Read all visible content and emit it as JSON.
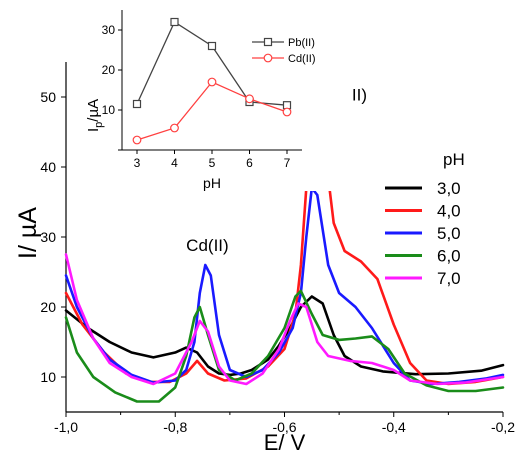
{
  "chart_data": [
    {
      "type": "line",
      "title": "",
      "xlabel": "E/ V",
      "ylabel": "I/ µA",
      "xlim": [
        -1.0,
        -0.2
      ],
      "ylim": [
        5,
        55
      ],
      "x_ticks": [
        -1.0,
        -0.8,
        -0.6,
        -0.4,
        -0.2
      ],
      "x_tick_labels": [
        "-1,0",
        "-0,8",
        "-0,6",
        "-0,4",
        "-0,2"
      ],
      "y_ticks": [
        10,
        20,
        30,
        40,
        50
      ],
      "y_tick_labels": [
        "10",
        "20",
        "30",
        "40",
        "50"
      ],
      "grid": false,
      "legend_title": "pH",
      "legend_position": "right",
      "annotations": [
        {
          "text": "Cd(II)",
          "x": -0.78,
          "y": 28
        },
        {
          "text": "Pb(II)",
          "x": -0.525,
          "y": 49.5
        }
      ],
      "series": [
        {
          "name": "3,0",
          "color": "#000000",
          "points": [
            [
              -1.0,
              19.5
            ],
            [
              -0.96,
              17
            ],
            [
              -0.92,
              15
            ],
            [
              -0.88,
              13.5
            ],
            [
              -0.84,
              12.8
            ],
            [
              -0.8,
              13.5
            ],
            [
              -0.78,
              14.2
            ],
            [
              -0.76,
              13.5
            ],
            [
              -0.74,
              11.5
            ],
            [
              -0.72,
              10.5
            ],
            [
              -0.7,
              10.3
            ],
            [
              -0.68,
              10.5
            ],
            [
              -0.66,
              11
            ],
            [
              -0.63,
              12.5
            ],
            [
              -0.61,
              14.5
            ],
            [
              -0.59,
              17
            ],
            [
              -0.57,
              20
            ],
            [
              -0.55,
              21.5
            ],
            [
              -0.53,
              20.5
            ],
            [
              -0.51,
              16
            ],
            [
              -0.49,
              13
            ],
            [
              -0.46,
              11.5
            ],
            [
              -0.42,
              10.8
            ],
            [
              -0.36,
              10.4
            ],
            [
              -0.3,
              10.5
            ],
            [
              -0.24,
              10.9
            ],
            [
              -0.2,
              11.7
            ]
          ]
        },
        {
          "name": "4,0",
          "color": "#ff1a1a",
          "points": [
            [
              -1.0,
              22
            ],
            [
              -0.97,
              17.5
            ],
            [
              -0.93,
              13.5
            ],
            [
              -0.89,
              10.5
            ],
            [
              -0.85,
              9.3
            ],
            [
              -0.81,
              9.3
            ],
            [
              -0.78,
              10.5
            ],
            [
              -0.76,
              12.3
            ],
            [
              -0.74,
              10.5
            ],
            [
              -0.71,
              9.5
            ],
            [
              -0.67,
              9.8
            ],
            [
              -0.63,
              11.5
            ],
            [
              -0.6,
              14
            ],
            [
              -0.58,
              19
            ],
            [
              -0.57,
              26
            ],
            [
              -0.56,
              37
            ],
            [
              -0.55,
              47
            ],
            [
              -0.545,
              49
            ],
            [
              -0.53,
              45
            ],
            [
              -0.51,
              32
            ],
            [
              -0.49,
              28
            ],
            [
              -0.46,
              26.5
            ],
            [
              -0.43,
              24
            ],
            [
              -0.4,
              17.5
            ],
            [
              -0.37,
              12
            ],
            [
              -0.34,
              9.5
            ],
            [
              -0.3,
              9
            ],
            [
              -0.25,
              9.3
            ],
            [
              -0.2,
              10
            ]
          ]
        },
        {
          "name": "5,0",
          "color": "#1a1aff",
          "points": [
            [
              -1.0,
              24.5
            ],
            [
              -0.98,
              20
            ],
            [
              -0.95,
              15.5
            ],
            [
              -0.92,
              12.5
            ],
            [
              -0.88,
              10.3
            ],
            [
              -0.84,
              9.2
            ],
            [
              -0.8,
              9.5
            ],
            [
              -0.78,
              11
            ],
            [
              -0.765,
              15
            ],
            [
              -0.755,
              22
            ],
            [
              -0.745,
              26
            ],
            [
              -0.735,
              24.5
            ],
            [
              -0.72,
              16
            ],
            [
              -0.7,
              11
            ],
            [
              -0.67,
              10
            ],
            [
              -0.64,
              11
            ],
            [
              -0.61,
              13.5
            ],
            [
              -0.585,
              17
            ],
            [
              -0.57,
              22
            ],
            [
              -0.56,
              30
            ],
            [
              -0.55,
              37
            ],
            [
              -0.54,
              36
            ],
            [
              -0.52,
              26
            ],
            [
              -0.5,
              22
            ],
            [
              -0.47,
              20
            ],
            [
              -0.44,
              17
            ],
            [
              -0.4,
              12
            ],
            [
              -0.37,
              9.5
            ],
            [
              -0.33,
              9
            ],
            [
              -0.28,
              9.3
            ],
            [
              -0.23,
              9.8
            ],
            [
              -0.2,
              10.3
            ]
          ]
        },
        {
          "name": "6,0",
          "color": "#1a8c1a",
          "points": [
            [
              -1.0,
              18.5
            ],
            [
              -0.98,
              13.5
            ],
            [
              -0.95,
              10
            ],
            [
              -0.91,
              7.8
            ],
            [
              -0.87,
              6.5
            ],
            [
              -0.83,
              6.5
            ],
            [
              -0.8,
              8.5
            ],
            [
              -0.78,
              13
            ],
            [
              -0.765,
              18.5
            ],
            [
              -0.755,
              20
            ],
            [
              -0.74,
              16
            ],
            [
              -0.72,
              11
            ],
            [
              -0.69,
              9.5
            ],
            [
              -0.66,
              10.5
            ],
            [
              -0.63,
              13
            ],
            [
              -0.6,
              17
            ],
            [
              -0.58,
              21.5
            ],
            [
              -0.57,
              22.3
            ],
            [
              -0.55,
              19
            ],
            [
              -0.53,
              16
            ],
            [
              -0.5,
              15.3
            ],
            [
              -0.47,
              15.5
            ],
            [
              -0.44,
              15.8
            ],
            [
              -0.41,
              14
            ],
            [
              -0.38,
              10.5
            ],
            [
              -0.34,
              8.8
            ],
            [
              -0.3,
              8
            ],
            [
              -0.25,
              8
            ],
            [
              -0.2,
              8.5
            ]
          ]
        },
        {
          "name": "7,0",
          "color": "#ff1aff",
          "points": [
            [
              -1.0,
              27.5
            ],
            [
              -0.98,
              21
            ],
            [
              -0.95,
              15.5
            ],
            [
              -0.92,
              12
            ],
            [
              -0.88,
              10
            ],
            [
              -0.84,
              9
            ],
            [
              -0.8,
              10.5
            ],
            [
              -0.77,
              15
            ],
            [
              -0.755,
              18
            ],
            [
              -0.74,
              16.5
            ],
            [
              -0.72,
              11.5
            ],
            [
              -0.7,
              9.5
            ],
            [
              -0.67,
              9
            ],
            [
              -0.64,
              10.5
            ],
            [
              -0.61,
              14
            ],
            [
              -0.59,
              18
            ],
            [
              -0.575,
              20.5
            ],
            [
              -0.56,
              20
            ],
            [
              -0.54,
              15
            ],
            [
              -0.52,
              13
            ],
            [
              -0.48,
              12.3
            ],
            [
              -0.44,
              12
            ],
            [
              -0.4,
              11
            ],
            [
              -0.37,
              9.5
            ],
            [
              -0.32,
              9
            ],
            [
              -0.27,
              9.2
            ],
            [
              -0.2,
              10
            ]
          ]
        }
      ]
    },
    {
      "type": "line",
      "title": "",
      "xlabel": "pH",
      "ylabel": "I",
      "ylabel_subscript": "p",
      "ylabel_unit": "/µA",
      "xlim": [
        2.6,
        7.4
      ],
      "ylim": [
        0,
        35
      ],
      "x_ticks": [
        3,
        4,
        5,
        6,
        7
      ],
      "x_tick_labels": [
        "3",
        "4",
        "5",
        "6",
        "7"
      ],
      "y_ticks": [
        0,
        10,
        20,
        30
      ],
      "y_tick_labels": [
        "0",
        "10",
        "20",
        "30"
      ],
      "grid": false,
      "legend_position": "top-right",
      "series": [
        {
          "name": "Pb(II)",
          "marker": "square",
          "color": "#444444",
          "x": [
            3,
            4,
            5,
            6,
            7
          ],
          "y": [
            11.5,
            32,
            26,
            12,
            11.2
          ]
        },
        {
          "name": "Cd(II)",
          "marker": "circle",
          "color": "#ff4040",
          "x": [
            3,
            4,
            5,
            6,
            7
          ],
          "y": [
            2.5,
            5.5,
            17,
            12.8,
            9.5
          ]
        }
      ]
    }
  ]
}
